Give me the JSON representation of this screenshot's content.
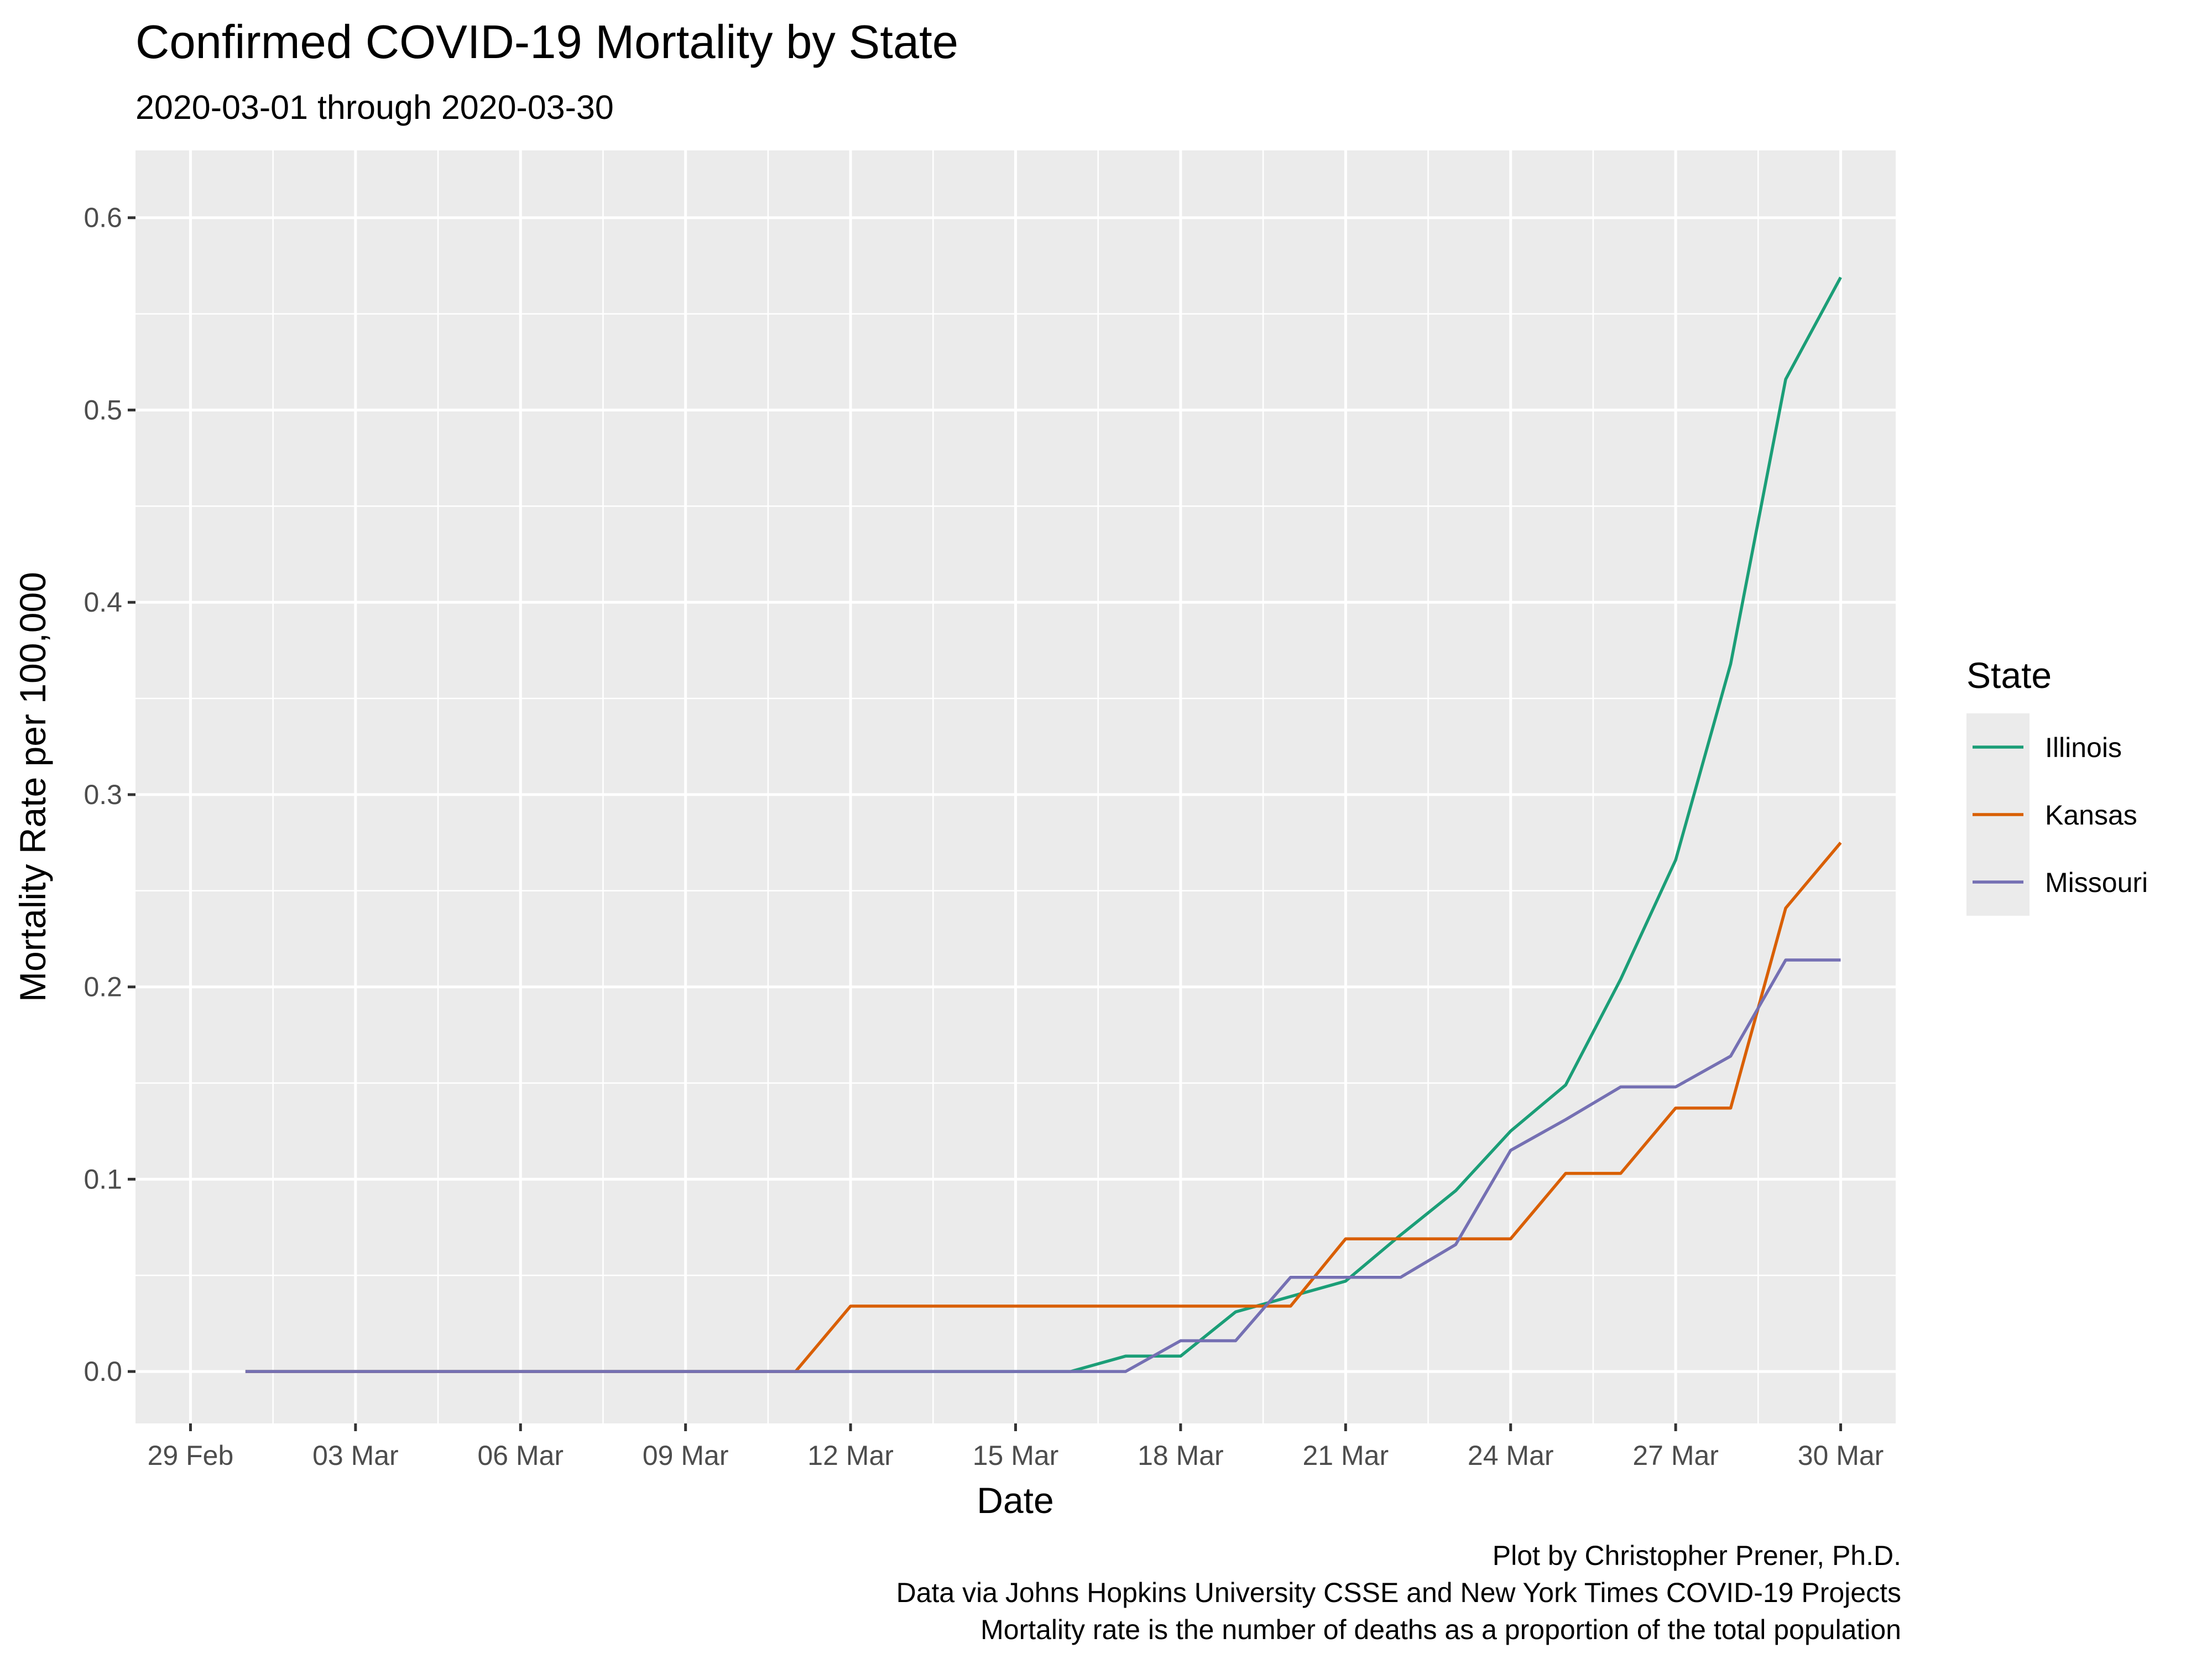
{
  "chart_data": {
    "type": "line",
    "title": "Confirmed COVID-19 Mortality by State",
    "subtitle": "2020-03-01 through 2020-03-30",
    "xlabel": "Date",
    "ylabel": "Mortality Rate per 100,000",
    "xlim": [
      "2020-02-28",
      "2020-03-31"
    ],
    "ylim": [
      -0.027,
      0.635
    ],
    "x_ticks": [
      {
        "date": "2020-02-29",
        "label": "29 Feb"
      },
      {
        "date": "2020-03-03",
        "label": "03 Mar"
      },
      {
        "date": "2020-03-06",
        "label": "06 Mar"
      },
      {
        "date": "2020-03-09",
        "label": "09 Mar"
      },
      {
        "date": "2020-03-12",
        "label": "12 Mar"
      },
      {
        "date": "2020-03-15",
        "label": "15 Mar"
      },
      {
        "date": "2020-03-18",
        "label": "18 Mar"
      },
      {
        "date": "2020-03-21",
        "label": "21 Mar"
      },
      {
        "date": "2020-03-24",
        "label": "24 Mar"
      },
      {
        "date": "2020-03-27",
        "label": "27 Mar"
      },
      {
        "date": "2020-03-30",
        "label": "30 Mar"
      }
    ],
    "y_ticks": [
      {
        "value": 0.0,
        "label": "0.0"
      },
      {
        "value": 0.1,
        "label": "0.1"
      },
      {
        "value": 0.2,
        "label": "0.2"
      },
      {
        "value": 0.3,
        "label": "0.3"
      },
      {
        "value": 0.4,
        "label": "0.4"
      },
      {
        "value": 0.5,
        "label": "0.5"
      },
      {
        "value": 0.6,
        "label": "0.6"
      }
    ],
    "x": [
      "2020-03-01",
      "2020-03-02",
      "2020-03-03",
      "2020-03-04",
      "2020-03-05",
      "2020-03-06",
      "2020-03-07",
      "2020-03-08",
      "2020-03-09",
      "2020-03-10",
      "2020-03-11",
      "2020-03-12",
      "2020-03-13",
      "2020-03-14",
      "2020-03-15",
      "2020-03-16",
      "2020-03-17",
      "2020-03-18",
      "2020-03-19",
      "2020-03-20",
      "2020-03-21",
      "2020-03-22",
      "2020-03-23",
      "2020-03-24",
      "2020-03-25",
      "2020-03-26",
      "2020-03-27",
      "2020-03-28",
      "2020-03-29",
      "2020-03-30"
    ],
    "series": [
      {
        "name": "Illinois",
        "color": "#1b9e77",
        "values": [
          0,
          0,
          0,
          0,
          0,
          0,
          0,
          0,
          0,
          0,
          0,
          0,
          0,
          0,
          0,
          0,
          0.008,
          0.008,
          0.031,
          0.039,
          0.047,
          0.071,
          0.094,
          0.125,
          0.149,
          0.204,
          0.266,
          0.368,
          0.516,
          0.569
        ]
      },
      {
        "name": "Kansas",
        "color": "#d95f02",
        "values": [
          0,
          0,
          0,
          0,
          0,
          0,
          0,
          0,
          0,
          0,
          0,
          0.034,
          0.034,
          0.034,
          0.034,
          0.034,
          0.034,
          0.034,
          0.034,
          0.034,
          0.069,
          0.069,
          0.069,
          0.069,
          0.103,
          0.103,
          0.137,
          0.137,
          0.241,
          0.275
        ]
      },
      {
        "name": "Missouri",
        "color": "#7570b3",
        "values": [
          0,
          0,
          0,
          0,
          0,
          0,
          0,
          0,
          0,
          0,
          0,
          0,
          0,
          0,
          0,
          0,
          0,
          0.016,
          0.016,
          0.049,
          0.049,
          0.049,
          0.066,
          0.115,
          0.131,
          0.148,
          0.148,
          0.164,
          0.214,
          0.214
        ]
      }
    ],
    "legend": {
      "title": "State",
      "placement": "right"
    },
    "grid": true,
    "caption": [
      "Plot by Christopher Prener, Ph.D.",
      "Data via Johns Hopkins University CSSE and New York Times COVID-19 Projects",
      "Mortality rate is the number of deaths as a proportion of the total population"
    ]
  }
}
